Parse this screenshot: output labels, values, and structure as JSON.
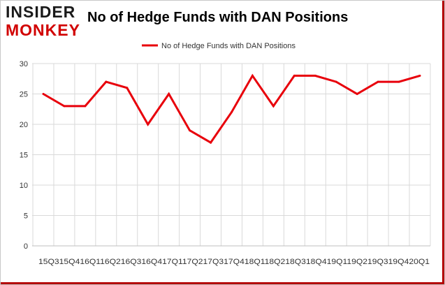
{
  "logo": {
    "line1": "INSIDER",
    "line2": "MONKEY"
  },
  "colors": {
    "line": "#e8000b",
    "grid": "#d9d9d9",
    "accent": "#d10000"
  },
  "chart_data": {
    "type": "line",
    "title": "No of Hedge Funds with DAN Positions",
    "xlabel": "",
    "ylabel": "",
    "legend": {
      "position": "top-center"
    },
    "grid": true,
    "ylim": [
      0,
      30
    ],
    "yticks": [
      0,
      5,
      10,
      15,
      20,
      25,
      30
    ],
    "tick_label_row": "15Q315Q416Q116Q216Q316Q417Q117Q217Q317Q418Q118Q218Q318Q419Q119Q219Q319Q420Q1",
    "categories": [
      "15Q3",
      "15Q4",
      "16Q1",
      "16Q2",
      "16Q3",
      "16Q4",
      "17Q1",
      "17Q2",
      "17Q3",
      "17Q4",
      "18Q1",
      "18Q2",
      "18Q3",
      "18Q4",
      "19Q1",
      "19Q2",
      "19Q3",
      "19Q4",
      "20Q1"
    ],
    "series": [
      {
        "name": "No of Hedge Funds with DAN Positions",
        "values": [
          25,
          23,
          23,
          27,
          26,
          20,
          25,
          19,
          17,
          22,
          28,
          23,
          28,
          28,
          27,
          25,
          27,
          27,
          28
        ]
      }
    ]
  }
}
